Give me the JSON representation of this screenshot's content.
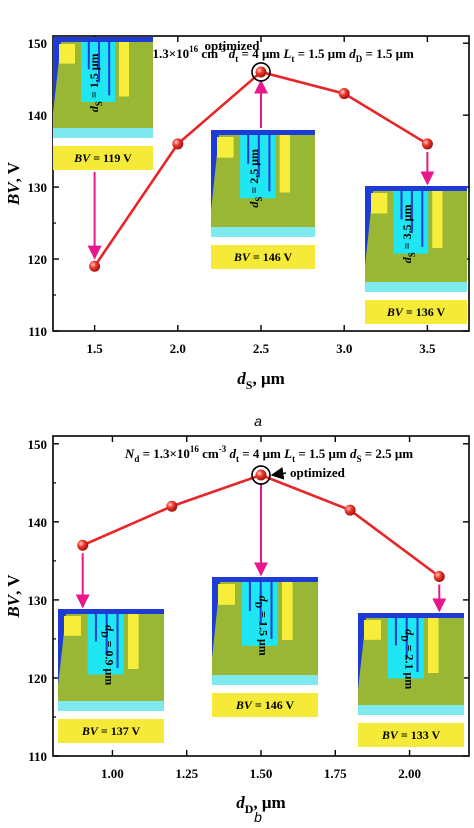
{
  "chart_data": [
    {
      "type": "line",
      "caption": "a",
      "header": {
        "parts": [
          {
            "t": "N",
            "it": true
          },
          {
            "t": "d",
            "sub": true
          },
          {
            "t": " = 1.3×10"
          },
          {
            "t": "16",
            "sup": true
          },
          {
            "t": " cm"
          },
          {
            "t": "-3",
            "sup": true
          },
          {
            "t": " d",
            "it": true
          },
          {
            "t": "t",
            "sub": true
          },
          {
            "t": " = 4 μm "
          },
          {
            "t": "L",
            "it": true
          },
          {
            "t": "t",
            "sub": true
          },
          {
            "t": " = 1.5 μm "
          },
          {
            "t": "d",
            "it": true
          },
          {
            "t": "D",
            "sub": true
          },
          {
            "t": " = 1.5 μm"
          }
        ]
      },
      "xlabel": {
        "main": "d",
        "sub": "S",
        "unit": ", μm"
      },
      "ylabel": {
        "main": "BV",
        "unit": ", V"
      },
      "xlim": [
        1.25,
        3.75
      ],
      "ylim": [
        110,
        151
      ],
      "xticks": [
        1.5,
        2.0,
        2.5,
        3.0,
        3.5
      ],
      "xtick_labels": [
        "1.5",
        "2.0",
        "2.5",
        "3.0",
        "3.5"
      ],
      "yticks": [
        110,
        120,
        130,
        140,
        150
      ],
      "ytick_labels": [
        "110",
        "120",
        "130",
        "140",
        "150"
      ],
      "x": [
        1.5,
        2.0,
        2.5,
        3.0,
        3.5
      ],
      "y": [
        119,
        136,
        146,
        143,
        136
      ],
      "series_color": "#e8262a",
      "annotation": "optimized",
      "highlight_index": 2,
      "insets": [
        {
          "bv_label": "BV = 119 V",
          "d_label": "dS = 1.5 μm",
          "d_main": "d",
          "d_sub": "S",
          "d_val": " = 1.5 μm",
          "point_index": 0
        },
        {
          "bv_label": "BV = 146 V",
          "d_label": "dS = 2.5 μm",
          "d_main": "d",
          "d_sub": "S",
          "d_val": " = 2.5 μm",
          "point_index": 2
        },
        {
          "bv_label": "BV = 136 V",
          "d_label": "dS = 3.5 μm",
          "d_main": "d",
          "d_sub": "S",
          "d_val": " = 3.5 μm",
          "point_index": 4
        }
      ]
    },
    {
      "type": "line",
      "caption": "b",
      "header": {
        "parts": [
          {
            "t": "N",
            "it": true
          },
          {
            "t": "d",
            "sub": true
          },
          {
            "t": " = 1.3×10"
          },
          {
            "t": "16",
            "sup": true
          },
          {
            "t": " cm"
          },
          {
            "t": "-3",
            "sup": true
          },
          {
            "t": " d",
            "it": true
          },
          {
            "t": "t",
            "sub": true
          },
          {
            "t": " = 4 μm "
          },
          {
            "t": "L",
            "it": true
          },
          {
            "t": "t",
            "sub": true
          },
          {
            "t": " = 1.5 μm "
          },
          {
            "t": "d",
            "it": true
          },
          {
            "t": "S",
            "sub": true
          },
          {
            "t": " = 2.5 μm"
          }
        ]
      },
      "xlabel": {
        "main": "d",
        "sub": "D",
        "unit": ", μm"
      },
      "ylabel": {
        "main": "BV",
        "unit": ", V"
      },
      "xlim": [
        0.8,
        2.2
      ],
      "ylim": [
        110,
        151
      ],
      "xticks": [
        1.0,
        1.25,
        1.5,
        1.75,
        2.0
      ],
      "xtick_labels": [
        "1.00",
        "1.25",
        "1.50",
        "1.75",
        "2.00"
      ],
      "yticks": [
        110,
        120,
        130,
        140,
        150
      ],
      "ytick_labels": [
        "110",
        "120",
        "130",
        "140",
        "150"
      ],
      "x": [
        0.9,
        1.2,
        1.5,
        1.8,
        2.1
      ],
      "y": [
        137,
        142,
        146,
        141.5,
        133
      ],
      "series_color": "#e8262a",
      "annotation": "optimized",
      "highlight_index": 2,
      "insets": [
        {
          "bv_label": "BV = 137 V",
          "d_label": "dD = 0.9 μm",
          "d_main": "d",
          "d_sub": "D",
          "d_val": " = 0.9 μm",
          "point_index": 0
        },
        {
          "bv_label": "BV = 146 V",
          "d_label": "dD = 1.5 μm",
          "d_main": "d",
          "d_sub": "D",
          "d_val": " = 1.5 μm",
          "point_index": 2
        },
        {
          "bv_label": "BV = 133 V",
          "d_label": "dD = 2.1 μm",
          "d_main": "d",
          "d_sub": "D",
          "d_val": " = 2.1 μm",
          "point_index": 4
        }
      ]
    }
  ],
  "colors": {
    "line": "#e8262a",
    "arrow": "#e8188c",
    "inset_green": "#99b734",
    "inset_cyan": "#1ee6f2",
    "inset_blue": "#1e3bd6",
    "inset_yellow": "#f7ee3c",
    "inset_lightcyan": "#7fe9f0",
    "label_bg": "#f4ea37"
  }
}
